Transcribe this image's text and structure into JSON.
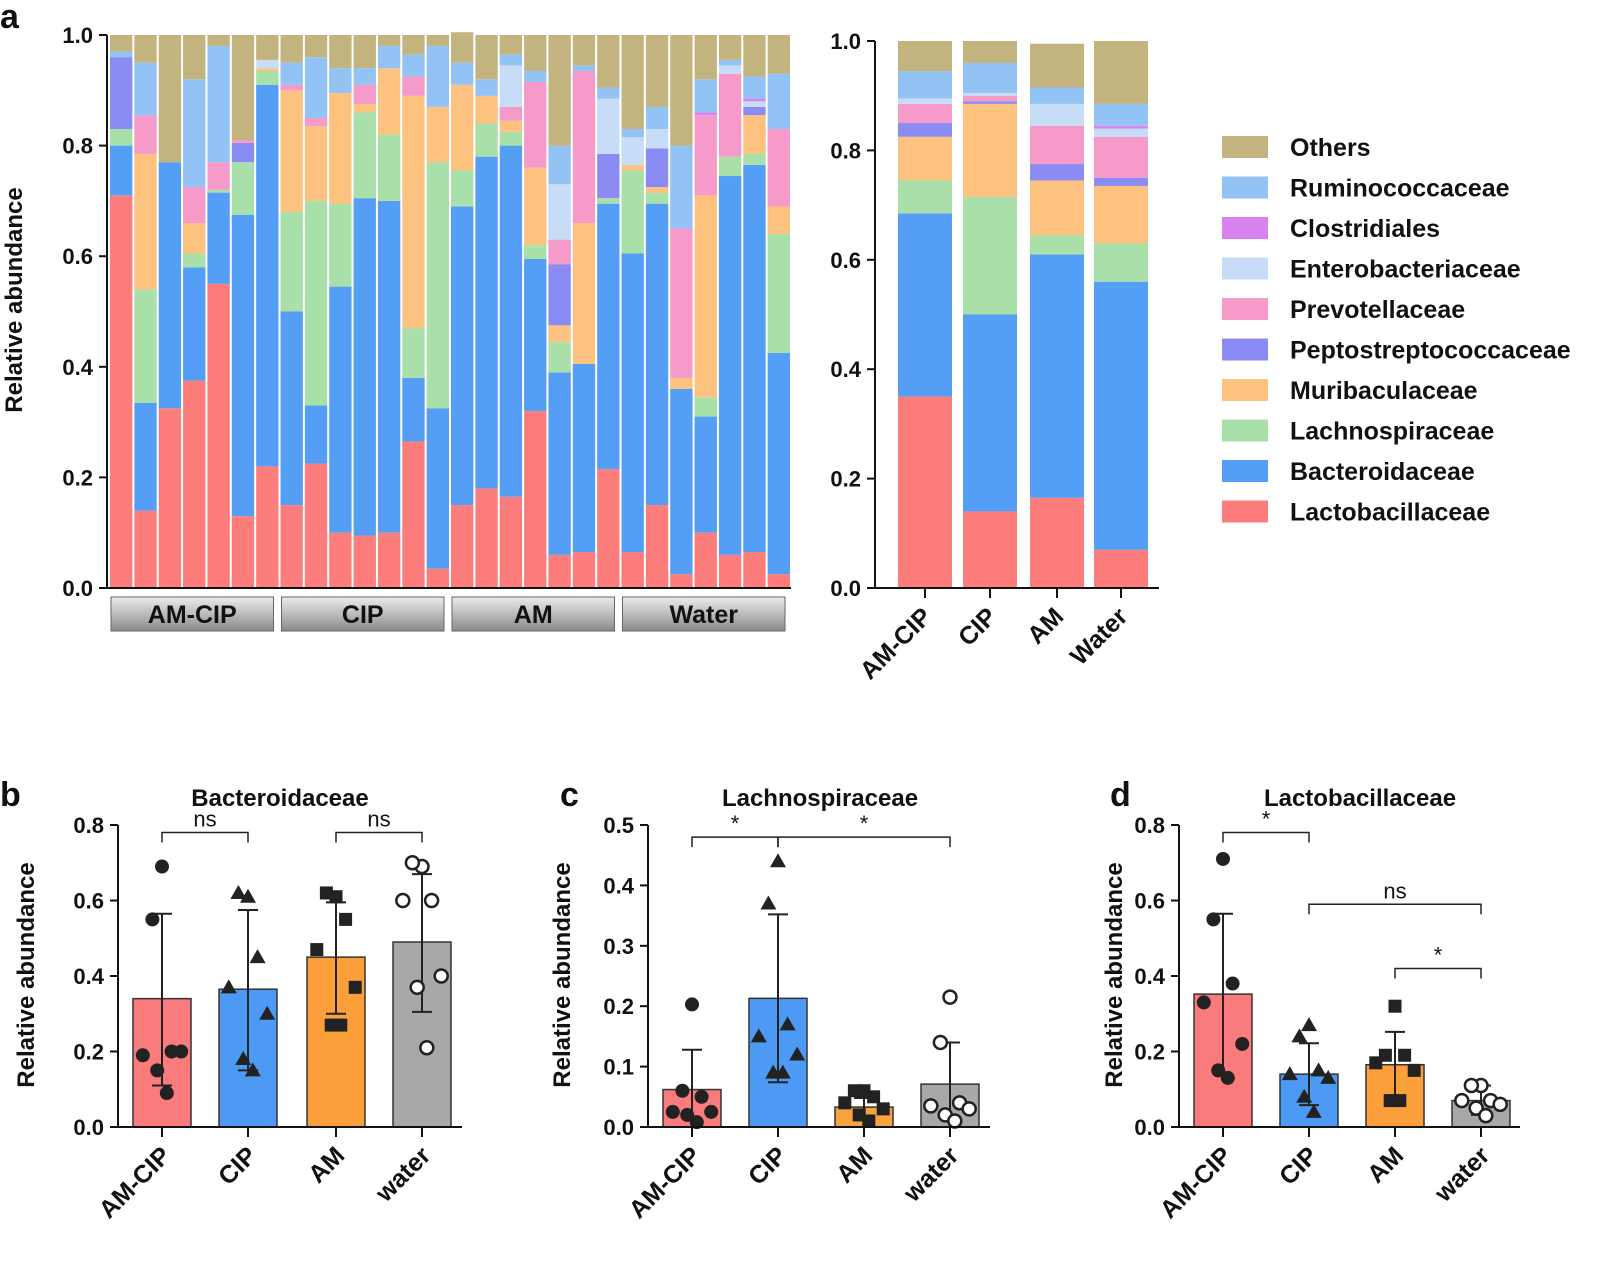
{
  "chart_data": [
    {
      "id": "a_left",
      "type": "stacked-bar",
      "panel_letter": "a",
      "ylabel": "Relative abundance",
      "ylim": [
        0,
        1
      ],
      "yticks": [
        "0.0",
        "0.2",
        "0.4",
        "0.6",
        "0.8",
        "1.0"
      ],
      "groups": [
        "AM-CIP",
        "CIP",
        "AM",
        "Water"
      ],
      "samples_per_group": 7,
      "series_order": [
        "Lactobacillaceae",
        "Bacteroidaceae",
        "Lachnospiraceae",
        "Muribaculaceae",
        "Peptostreptococcaceae",
        "Prevotellaceae",
        "Enterobacteriaceae",
        "Clostridiales",
        "Ruminococcaceae",
        "Others"
      ],
      "samples": [
        [
          0.71,
          0.09,
          0.03,
          0.0,
          0.13,
          0.0,
          0.0,
          0.0,
          0.01,
          0.03
        ],
        [
          0.14,
          0.195,
          0.205,
          0.245,
          0.0,
          0.07,
          0.0,
          0.0,
          0.095,
          0.05
        ],
        [
          0.325,
          0.445,
          0.0,
          0.0,
          0.0,
          0.0,
          0.0,
          0.0,
          0.0,
          0.23
        ],
        [
          0.375,
          0.205,
          0.025,
          0.055,
          0.0,
          0.065,
          0.0,
          0.0,
          0.195,
          0.08
        ],
        [
          0.55,
          0.165,
          0.005,
          0.0,
          0.0,
          0.05,
          0.0,
          0.0,
          0.21,
          0.02
        ],
        [
          0.13,
          0.545,
          0.095,
          0.0,
          0.035,
          0.005,
          0.0,
          0.0,
          0.0,
          0.19
        ],
        [
          0.22,
          0.69,
          0.025,
          0.005,
          0.0,
          0.0,
          0.015,
          0.0,
          0.0,
          0.045
        ],
        [
          0.15,
          0.35,
          0.18,
          0.22,
          0.0,
          0.01,
          0.0,
          0.0,
          0.04,
          0.05
        ],
        [
          0.225,
          0.105,
          0.37,
          0.135,
          0.0,
          0.015,
          0.0,
          0.0,
          0.11,
          0.04
        ],
        [
          0.1,
          0.445,
          0.15,
          0.2,
          0.0,
          0.0,
          0.0,
          0.0,
          0.045,
          0.06
        ],
        [
          0.095,
          0.61,
          0.155,
          0.015,
          0.0,
          0.035,
          0.0,
          0.0,
          0.03,
          0.06
        ],
        [
          0.1,
          0.6,
          0.12,
          0.12,
          0.0,
          0.0,
          0.0,
          0.0,
          0.04,
          0.02
        ],
        [
          0.265,
          0.115,
          0.09,
          0.42,
          0.0,
          0.035,
          0.0,
          0.0,
          0.04,
          0.035
        ],
        [
          0.035,
          0.29,
          0.445,
          0.1,
          0.0,
          0.0,
          0.0,
          0.0,
          0.11,
          0.02
        ],
        [
          0.15,
          0.54,
          0.065,
          0.155,
          0.0,
          0.0,
          0.0,
          0.0,
          0.04,
          0.055
        ],
        [
          0.18,
          0.6,
          0.06,
          0.05,
          0.0,
          0.0,
          0.0,
          0.0,
          0.03,
          0.08
        ],
        [
          0.165,
          0.635,
          0.025,
          0.02,
          0.0,
          0.025,
          0.075,
          0.0,
          0.02,
          0.035
        ],
        [
          0.32,
          0.275,
          0.025,
          0.14,
          0.0,
          0.155,
          0.0,
          0.0,
          0.02,
          0.065
        ],
        [
          0.06,
          0.33,
          0.055,
          0.03,
          0.11,
          0.045,
          0.1,
          0.0,
          0.07,
          0.2
        ],
        [
          0.065,
          0.34,
          0.0,
          0.255,
          0.0,
          0.275,
          0.0,
          0.0,
          0.01,
          0.055
        ],
        [
          0.215,
          0.48,
          0.01,
          0.0,
          0.08,
          0.0,
          0.1,
          0.0,
          0.02,
          0.095
        ],
        [
          0.065,
          0.54,
          0.15,
          0.01,
          0.0,
          0.0,
          0.05,
          0.0,
          0.015,
          0.17
        ],
        [
          0.15,
          0.545,
          0.02,
          0.01,
          0.07,
          0.0,
          0.035,
          0.0,
          0.04,
          0.13
        ],
        [
          0.025,
          0.335,
          0.0,
          0.02,
          0.0,
          0.27,
          0.0,
          0.0,
          0.15,
          0.2
        ],
        [
          0.1,
          0.21,
          0.035,
          0.365,
          0.0,
          0.145,
          0.0,
          0.005,
          0.06,
          0.08
        ],
        [
          0.06,
          0.685,
          0.035,
          0.0,
          0.0,
          0.15,
          0.015,
          0.0,
          0.01,
          0.045
        ],
        [
          0.065,
          0.7,
          0.02,
          0.07,
          0.015,
          0.0,
          0.01,
          0.005,
          0.04,
          0.075
        ],
        [
          0.025,
          0.4,
          0.215,
          0.05,
          0.0,
          0.14,
          0.0,
          0.0,
          0.1,
          0.07
        ]
      ]
    },
    {
      "id": "a_right",
      "type": "stacked-bar",
      "ylim": [
        0,
        1
      ],
      "yticks": [
        "0.0",
        "0.2",
        "0.4",
        "0.6",
        "0.8",
        "1.0"
      ],
      "categories": [
        "AM-CIP",
        "CIP",
        "AM",
        "Water"
      ],
      "series": [
        {
          "name": "Lactobacillaceae",
          "values": [
            0.35,
            0.14,
            0.165,
            0.07
          ]
        },
        {
          "name": "Bacteroidaceae",
          "values": [
            0.335,
            0.36,
            0.445,
            0.49
          ]
        },
        {
          "name": "Lachnospiraceae",
          "values": [
            0.06,
            0.215,
            0.035,
            0.07
          ]
        },
        {
          "name": "Muribaculaceae",
          "values": [
            0.08,
            0.17,
            0.1,
            0.105
          ]
        },
        {
          "name": "Peptostreptococcaceae",
          "values": [
            0.025,
            0.005,
            0.03,
            0.015
          ]
        },
        {
          "name": "Prevotellaceae",
          "values": [
            0.035,
            0.01,
            0.07,
            0.075
          ]
        },
        {
          "name": "Enterobacteriaceae",
          "values": [
            0.01,
            0.005,
            0.04,
            0.015
          ]
        },
        {
          "name": "Clostridiales",
          "values": [
            0.0,
            0.0,
            0.0,
            0.005
          ]
        },
        {
          "name": "Ruminococcaceae",
          "values": [
            0.05,
            0.055,
            0.03,
            0.04
          ]
        },
        {
          "name": "Others",
          "values": [
            0.055,
            0.04,
            0.08,
            0.115
          ]
        }
      ]
    },
    {
      "id": "b",
      "type": "bar-scatter",
      "panel_letter": "b",
      "title": "Bacteroidaceae",
      "ylabel": "Relative abundance",
      "ylim": [
        0,
        0.8
      ],
      "yticks": [
        "0.0",
        "0.2",
        "0.4",
        "0.6",
        "0.8"
      ],
      "categories": [
        "AM-CIP",
        "CIP",
        "AM",
        "water"
      ],
      "means": [
        0.34,
        0.365,
        0.45,
        0.49
      ],
      "sd_low": [
        0.11,
        0.15,
        0.3,
        0.305
      ],
      "sd_high": [
        0.565,
        0.575,
        0.595,
        0.67
      ],
      "points": [
        [
          0.69,
          0.55,
          0.2,
          0.19,
          0.2,
          0.15,
          0.09
        ],
        [
          0.61,
          0.62,
          0.45,
          0.37,
          0.3,
          0.18,
          0.15
        ],
        [
          0.61,
          0.62,
          0.55,
          0.47,
          0.37,
          0.27,
          0.27
        ],
        [
          0.69,
          0.7,
          0.6,
          0.6,
          0.4,
          0.37,
          0.21
        ]
      ],
      "markers": [
        "circle",
        "triangle",
        "square",
        "open-circle"
      ],
      "significance": [
        {
          "from": 0,
          "to": 1,
          "label": "ns",
          "y": 0.78
        },
        {
          "from": 2,
          "to": 3,
          "label": "ns",
          "y": 0.78
        }
      ]
    },
    {
      "id": "c",
      "type": "bar-scatter",
      "panel_letter": "c",
      "title": "Lachnospiraceae",
      "ylabel": "Relative abundance",
      "ylim": [
        0,
        0.5
      ],
      "yticks": [
        "0.0",
        "0.1",
        "0.2",
        "0.3",
        "0.4",
        "0.5"
      ],
      "categories": [
        "AM-CIP",
        "CIP",
        "AM",
        "water"
      ],
      "means": [
        0.062,
        0.213,
        0.033,
        0.071
      ],
      "sd_low": [
        0.0,
        0.074,
        0.018,
        0.0
      ],
      "sd_high": [
        0.128,
        0.352,
        0.048,
        0.14
      ],
      "points": [
        [
          0.203,
          0.06,
          0.05,
          0.025,
          0.025,
          0.02,
          0.008
        ],
        [
          0.44,
          0.37,
          0.17,
          0.15,
          0.12,
          0.09,
          0.09
        ],
        [
          0.06,
          0.06,
          0.05,
          0.04,
          0.03,
          0.02,
          0.01
        ],
        [
          0.215,
          0.14,
          0.04,
          0.035,
          0.03,
          0.02,
          0.01
        ]
      ],
      "markers": [
        "circle",
        "triangle",
        "square",
        "open-circle"
      ],
      "significance": [
        {
          "from": 0,
          "to": 1,
          "label": "*",
          "y": 0.48
        },
        {
          "from": 1,
          "to": 3,
          "label": "*",
          "y": 0.48
        }
      ]
    },
    {
      "id": "d",
      "type": "bar-scatter",
      "panel_letter": "d",
      "title": "Lactobacillaceae",
      "ylabel": "Relative abundance",
      "ylim": [
        0,
        0.8
      ],
      "yticks": [
        "0.0",
        "0.2",
        "0.4",
        "0.6",
        "0.8"
      ],
      "categories": [
        "AM-CIP",
        "CIP",
        "AM",
        "water"
      ],
      "means": [
        0.352,
        0.14,
        0.165,
        0.07
      ],
      "sd_low": [
        0.14,
        0.058,
        0.077,
        0.032
      ],
      "sd_high": [
        0.565,
        0.222,
        0.252,
        0.11
      ],
      "points": [
        [
          0.71,
          0.55,
          0.38,
          0.33,
          0.22,
          0.15,
          0.13
        ],
        [
          0.27,
          0.24,
          0.15,
          0.14,
          0.13,
          0.08,
          0.04
        ],
        [
          0.32,
          0.19,
          0.19,
          0.17,
          0.15,
          0.07,
          0.07
        ],
        [
          0.11,
          0.11,
          0.07,
          0.07,
          0.06,
          0.05,
          0.03
        ]
      ],
      "markers": [
        "circle",
        "triangle",
        "square",
        "open-circle"
      ],
      "significance": [
        {
          "from": 0,
          "to": 1,
          "label": "*",
          "y": 0.78
        },
        {
          "from": 1,
          "to": 3,
          "label": "ns",
          "y": 0.59
        },
        {
          "from": 2,
          "to": 3,
          "label": "*",
          "y": 0.42
        }
      ]
    }
  ],
  "legend": [
    "Others",
    "Ruminococcaceae",
    "Clostridiales",
    "Enterobacteriaceae",
    "Prevotellaceae",
    "Peptostreptococcaceae",
    "Muribaculaceae",
    "Lachnospiraceae",
    "Bacteroidaceae",
    "Lactobacillaceae"
  ],
  "colors": {
    "Lactobacillaceae": "#fd7d7d",
    "Bacteroidaceae": "#549ff5",
    "Lachnospiraceae": "#a9dfa8",
    "Muribaculaceae": "#fdc180",
    "Peptostreptococcaceae": "#8b8bf4",
    "Prevotellaceae": "#f69ac9",
    "Enterobacteriaceae": "#c6dcf7",
    "Clostridiales": "#d983f0",
    "Ruminococcaceae": "#93c2f5",
    "Others": "#c3b37e",
    "bar_b_d": [
      "#f97b7b",
      "#4c9af3",
      "#fc9e3a",
      "#a8a8ab"
    ],
    "bar_c": [
      "#f97b7b",
      "#4c9af3",
      "#f7a340",
      "#a8a8ab"
    ],
    "group_box_top": "#e6e6e6",
    "group_box_bottom": "#8a8a8a"
  }
}
